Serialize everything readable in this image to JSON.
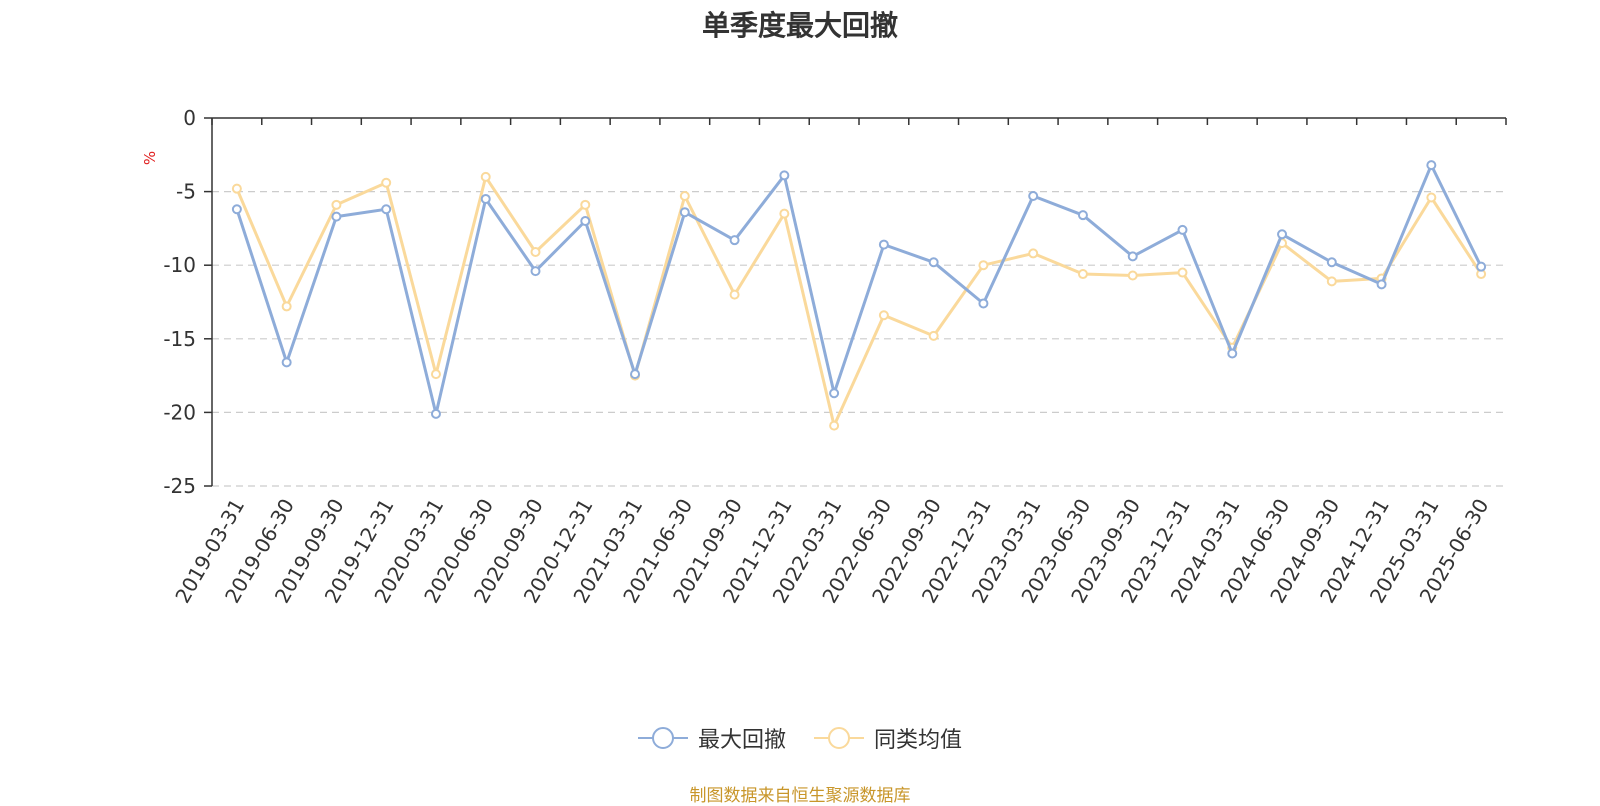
{
  "chart_data": {
    "type": "line",
    "title": "单季度最大回撤",
    "ylabel": "%",
    "xlabel": "",
    "ylim": [
      -25,
      0
    ],
    "yticks": [
      0,
      -5,
      -10,
      -15,
      -20,
      -25
    ],
    "grid": true,
    "legend_position": "bottom",
    "categories": [
      "2019-03-31",
      "2019-06-30",
      "2019-09-30",
      "2019-12-31",
      "2020-03-31",
      "2020-06-30",
      "2020-09-30",
      "2020-12-31",
      "2021-03-31",
      "2021-06-30",
      "2021-09-30",
      "2021-12-31",
      "2022-03-31",
      "2022-06-30",
      "2022-09-30",
      "2022-12-31",
      "2023-03-31",
      "2023-06-30",
      "2023-09-30",
      "2023-12-31",
      "2024-03-31",
      "2024-06-30",
      "2024-09-30",
      "2024-12-31",
      "2025-03-31",
      "2025-06-30"
    ],
    "series": [
      {
        "name": "最大回撤",
        "color": "#8eacd9",
        "values": [
          -6.2,
          -16.6,
          -6.7,
          -6.2,
          -20.1,
          -5.5,
          -10.4,
          -7.0,
          -17.4,
          -6.4,
          -8.3,
          -3.9,
          -18.7,
          -8.6,
          -9.8,
          -12.6,
          -5.3,
          -6.6,
          -9.4,
          -7.6,
          -16.0,
          -7.9,
          -9.8,
          -11.3,
          -3.2,
          -10.1
        ]
      },
      {
        "name": "同类均值",
        "color": "#fad99b",
        "values": [
          -4.8,
          -12.8,
          -5.9,
          -4.4,
          -17.4,
          -4.0,
          -9.1,
          -5.9,
          -17.5,
          -5.3,
          -12.0,
          -6.5,
          -20.9,
          -13.4,
          -14.8,
          -10.0,
          -9.2,
          -10.6,
          -10.7,
          -10.5,
          -15.6,
          -8.5,
          -11.1,
          -10.9,
          -5.4,
          -10.6
        ]
      }
    ]
  },
  "source_note": "制图数据来自恒生聚源数据库",
  "colors": {
    "axis": "#333333",
    "grid": "#cccccc",
    "ylabel": "#e02020",
    "source": "#c8962a"
  }
}
